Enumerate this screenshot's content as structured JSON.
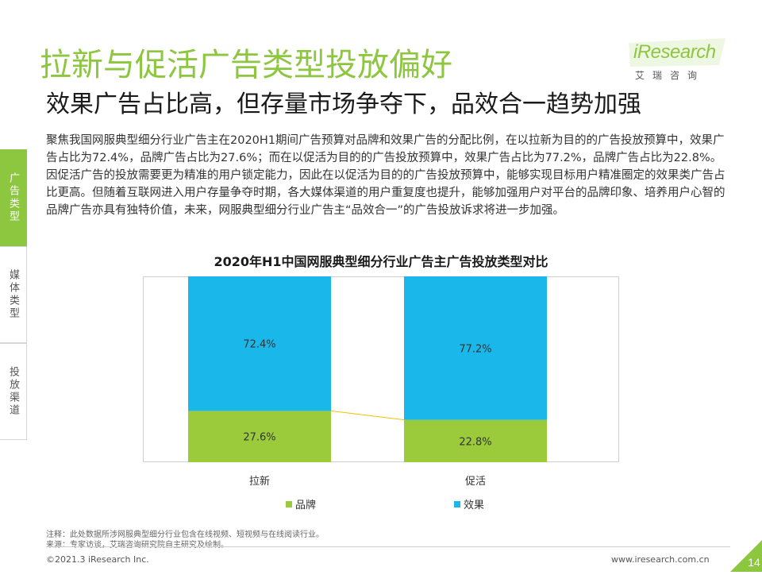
{
  "header": {
    "title": "拉新与促活广告类型投放偏好",
    "subtitle": "效果广告占比高，但存量市场争夺下，品效合一趋势加强"
  },
  "logo": {
    "word": "iResearch",
    "cn": "艾瑞咨询"
  },
  "sidebar": {
    "tabs": [
      {
        "label": "广告类型",
        "active": true
      },
      {
        "label": "媒体类型",
        "active": false
      },
      {
        "label": "投放渠道",
        "active": false
      }
    ]
  },
  "body_text": "聚焦我国网服典型细分行业广告主在2020H1期间广告预算对品牌和效果广告的分配比例，在以拉新为目的的广告投放预算中，效果广告占比为72.4%，品牌广告占比为27.6%；而在以促活为目的的广告投放预算中，效果广告占比为77.2%，品牌广告占比为22.8%。因促活广告的投放需要更为精准的用户锁定能力，因此在以促活为目的的广告投放预算中，能够实现目标用户精准圈定的效果类广告占比更高。但随着互联网进入用户存量争夺时期，各大媒体渠道的用户重复度也提升，能够加强用户对平台的品牌印象、培养用户心智的品牌广告亦具有独特价值，未来，网服典型细分行业广告主“品效合一”的广告投放诉求将进一步加强。",
  "colors": {
    "accent": "#8dc63f",
    "brand": "#9bcb3b",
    "effect": "#1ab7ea"
  },
  "chart_data": {
    "type": "bar",
    "stacked": true,
    "title": "2020年H1中国网服典型细分行业广告主广告投放类型对比",
    "categories": [
      "拉新",
      "促活"
    ],
    "series": [
      {
        "name": "品牌",
        "values": [
          27.6,
          22.8
        ],
        "labels": [
          "27.6%",
          "22.8%"
        ],
        "color": "#9bcb3b"
      },
      {
        "name": "效果",
        "values": [
          72.4,
          77.2
        ],
        "labels": [
          "72.4%",
          "77.2%"
        ],
        "color": "#1ab7ea"
      }
    ],
    "ylim": [
      0,
      100
    ],
    "grid": false,
    "legend": "bottom"
  },
  "notes": {
    "note": "注释：此处数据所涉网服典型细分行业包含在线视频、短视频与在线阅读行业。",
    "source": "来源：专家访谈，艾瑞咨询研究院自主研究及绘制。"
  },
  "footer": {
    "copyright": "©2021.3 iResearch Inc.",
    "url": "www.iresearch.com.cn",
    "page": "14"
  }
}
